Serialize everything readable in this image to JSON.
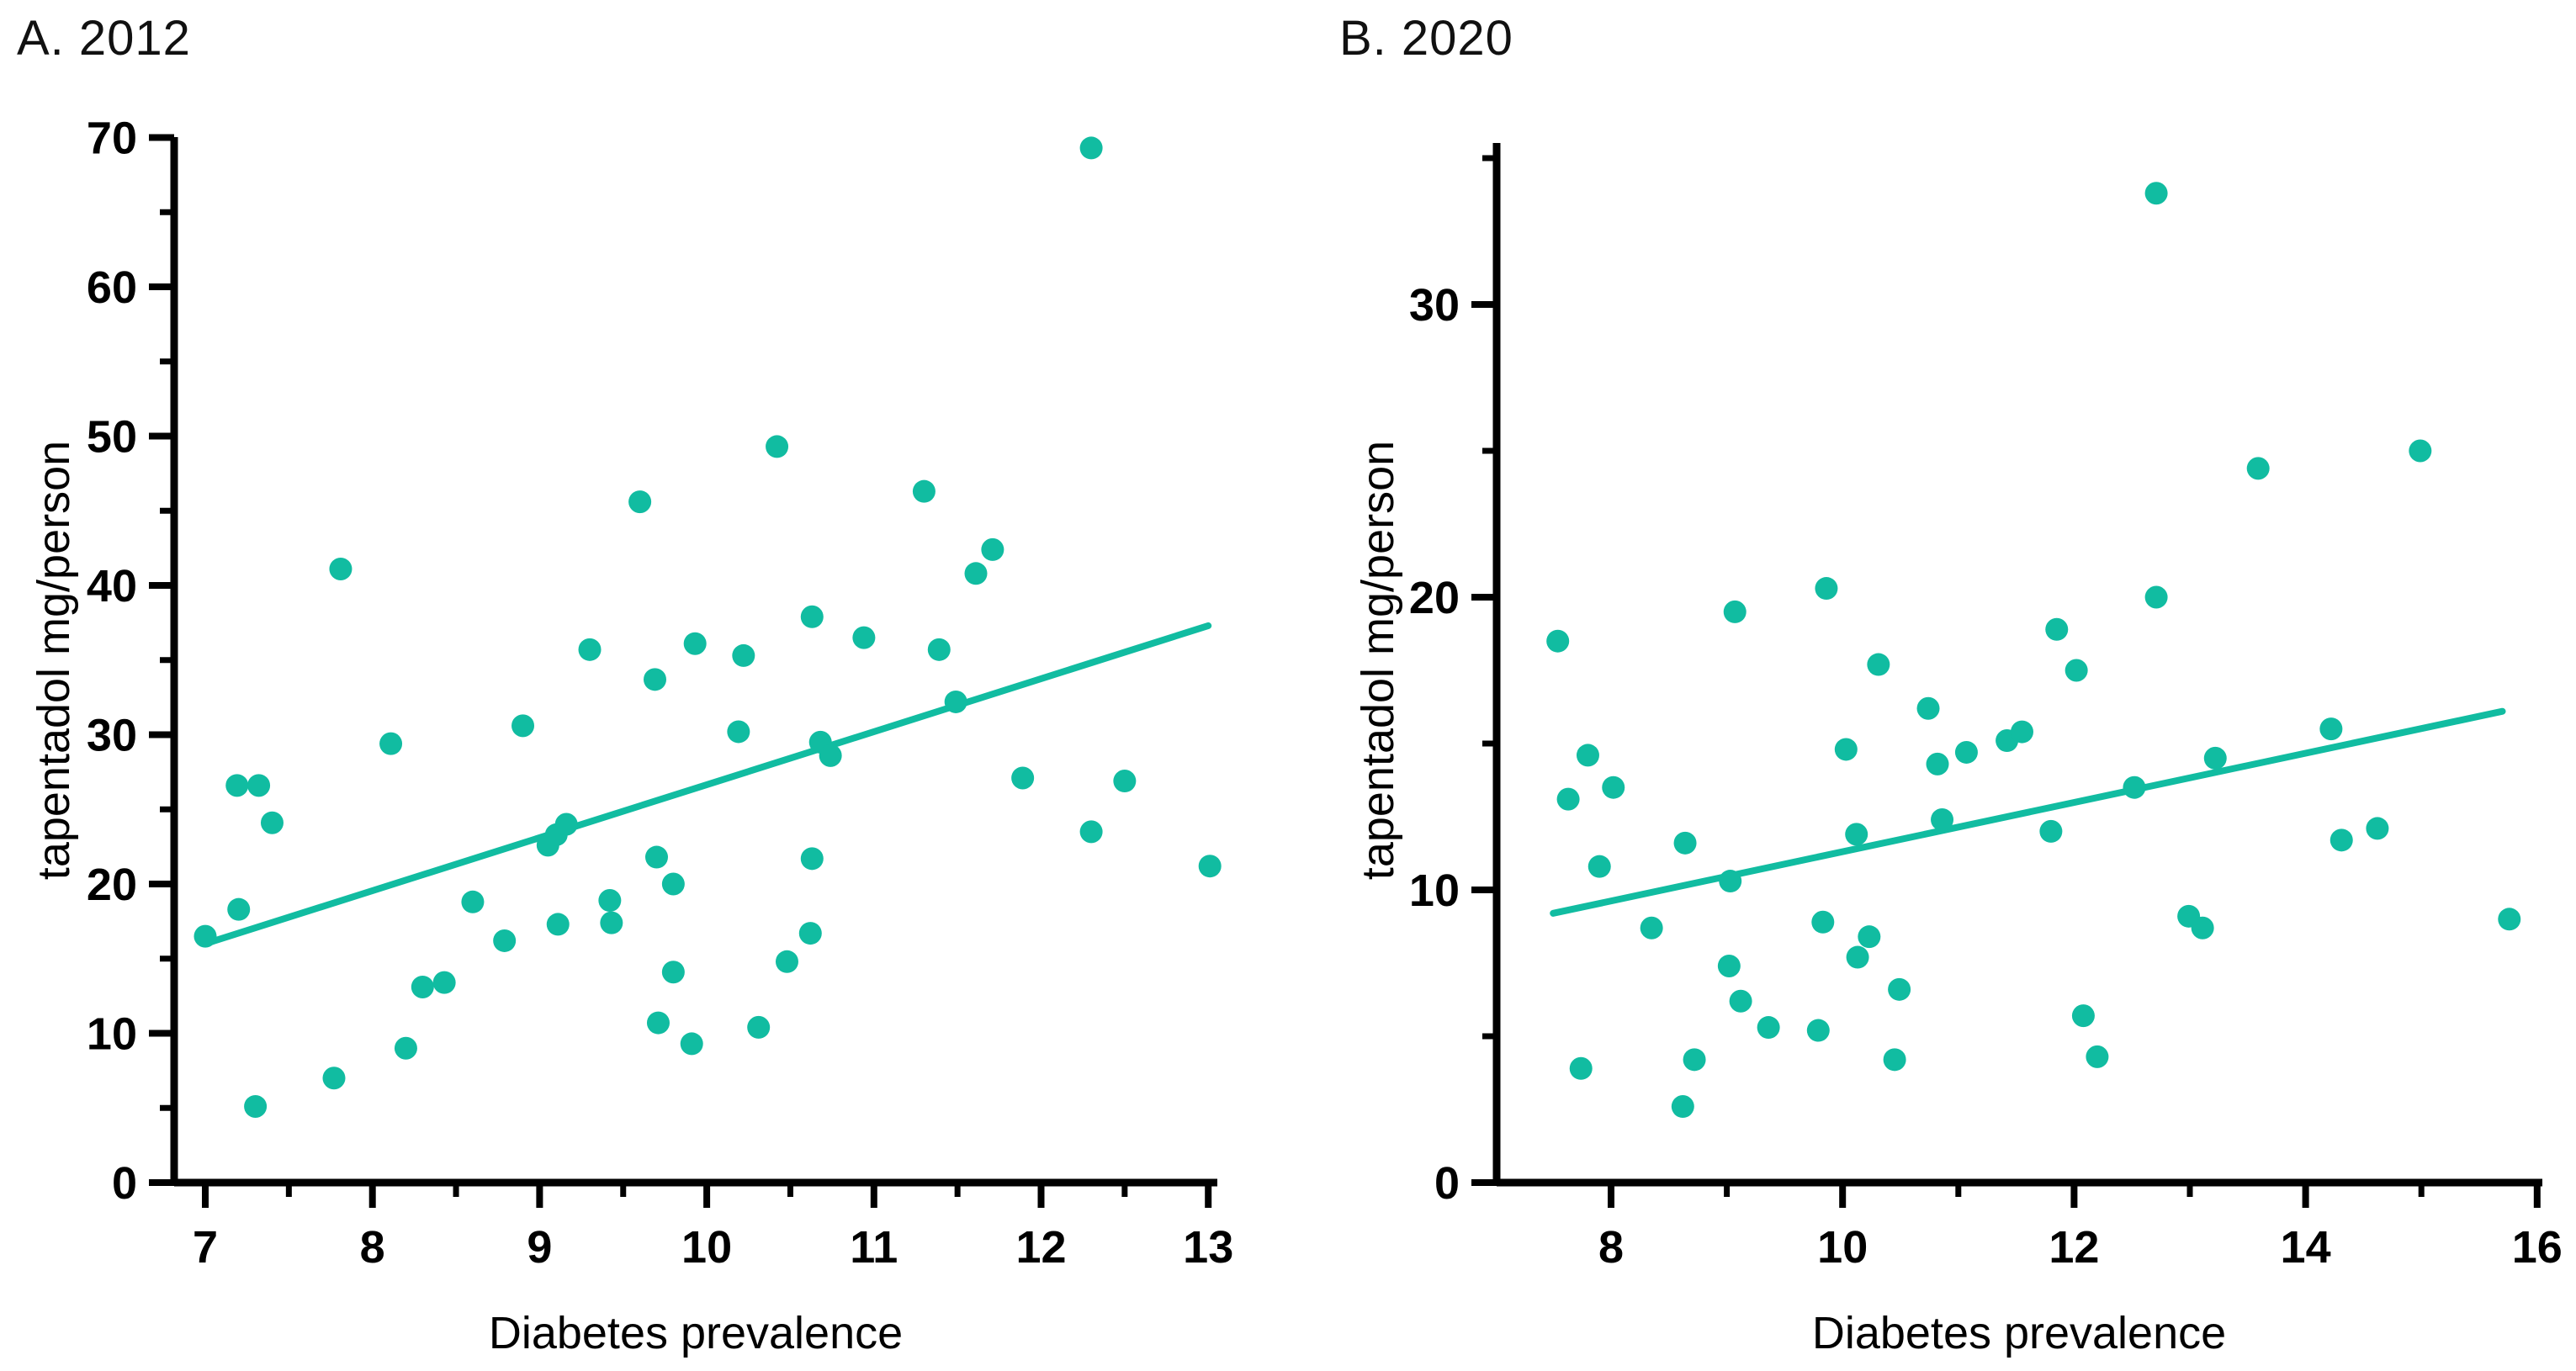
{
  "colors": {
    "accent": "#11BCA1",
    "axis": "#000000",
    "text": "#111111"
  },
  "panel_a": {
    "title": "A. 2012",
    "xlabel": "Diabetes prevalence",
    "ylabel": "tapentadol mg/person"
  },
  "panel_b": {
    "title": "B. 2020",
    "xlabel": "Diabetes prevalence",
    "ylabel": "tapentadol mg/person"
  },
  "chart_data": [
    {
      "type": "scatter",
      "title": "A. 2012",
      "xlabel": "Diabetes prevalence",
      "ylabel": "tapentadol mg/person",
      "xlim": [
        6.81,
        13.05
      ],
      "ylim": [
        0,
        70
      ],
      "xticks": [
        7,
        8,
        9,
        10,
        11,
        12,
        13
      ],
      "xticks_minor": [
        7.5,
        8.5,
        9.5,
        10.5,
        11.5,
        12.5
      ],
      "yticks": [
        0,
        10,
        20,
        30,
        40,
        50,
        60,
        70
      ],
      "yticks_minor": [
        5,
        15,
        25,
        35,
        45,
        55,
        65
      ],
      "grid": false,
      "legend": "none",
      "points": [
        [
          7.0,
          16.5
        ],
        [
          7.19,
          26.6
        ],
        [
          7.2,
          18.3
        ],
        [
          7.3,
          5.1
        ],
        [
          7.32,
          26.6
        ],
        [
          7.4,
          24.1
        ],
        [
          7.77,
          7.0
        ],
        [
          7.81,
          41.1
        ],
        [
          8.11,
          29.4
        ],
        [
          8.2,
          9.0
        ],
        [
          8.3,
          13.1
        ],
        [
          8.43,
          13.4
        ],
        [
          8.6,
          18.8
        ],
        [
          8.79,
          16.2
        ],
        [
          8.9,
          30.6
        ],
        [
          9.05,
          22.6
        ],
        [
          9.1,
          23.3
        ],
        [
          9.16,
          24.0
        ],
        [
          9.11,
          17.3
        ],
        [
          9.3,
          35.7
        ],
        [
          9.42,
          18.9
        ],
        [
          9.43,
          17.4
        ],
        [
          9.6,
          45.6
        ],
        [
          9.69,
          33.7
        ],
        [
          9.7,
          21.8
        ],
        [
          9.71,
          10.7
        ],
        [
          9.8,
          20.0
        ],
        [
          9.8,
          14.1
        ],
        [
          9.91,
          9.3
        ],
        [
          9.93,
          36.1
        ],
        [
          10.19,
          30.2
        ],
        [
          10.22,
          35.3
        ],
        [
          10.31,
          10.4
        ],
        [
          10.42,
          49.3
        ],
        [
          10.48,
          14.8
        ],
        [
          10.62,
          16.7
        ],
        [
          10.63,
          21.7
        ],
        [
          10.63,
          37.9
        ],
        [
          10.68,
          29.5
        ],
        [
          10.74,
          28.6
        ],
        [
          10.94,
          36.5
        ],
        [
          11.3,
          46.3
        ],
        [
          11.39,
          35.7
        ],
        [
          11.49,
          32.2
        ],
        [
          11.61,
          40.8
        ],
        [
          11.71,
          42.4
        ],
        [
          11.89,
          27.1
        ],
        [
          12.3,
          69.3
        ],
        [
          12.3,
          23.5
        ],
        [
          12.5,
          26.9
        ],
        [
          13.01,
          21.2
        ]
      ],
      "trendline": {
        "x1": 7.0,
        "y1": 16.0,
        "x2": 13.0,
        "y2": 37.3
      }
    },
    {
      "type": "scatter",
      "title": "B. 2020",
      "xlabel": "Diabetes prevalence",
      "ylabel": "tapentadol mg/person",
      "xlim": [
        7.01,
        16.04
      ],
      "ylim": [
        0,
        35.5
      ],
      "xticks": [
        8,
        10,
        12,
        14,
        16
      ],
      "xticks_minor": [
        9,
        11,
        13,
        15
      ],
      "yticks": [
        0,
        10,
        20,
        30
      ],
      "yticks_minor": [
        5,
        15,
        25,
        35
      ],
      "grid": false,
      "legend": "none",
      "points": [
        [
          7.54,
          18.5
        ],
        [
          7.63,
          13.1
        ],
        [
          7.74,
          3.9
        ],
        [
          7.8,
          14.6
        ],
        [
          7.9,
          10.8
        ],
        [
          8.02,
          13.5
        ],
        [
          8.35,
          8.7
        ],
        [
          8.62,
          2.6
        ],
        [
          8.64,
          11.6
        ],
        [
          8.72,
          4.2
        ],
        [
          9.02,
          7.4
        ],
        [
          9.03,
          10.3
        ],
        [
          9.07,
          19.5
        ],
        [
          9.12,
          6.2
        ],
        [
          9.36,
          5.3
        ],
        [
          9.79,
          5.2
        ],
        [
          9.83,
          8.9
        ],
        [
          9.86,
          20.3
        ],
        [
          10.03,
          14.8
        ],
        [
          10.12,
          11.9
        ],
        [
          10.13,
          7.7
        ],
        [
          10.23,
          8.4
        ],
        [
          10.31,
          17.7
        ],
        [
          10.45,
          4.2
        ],
        [
          10.49,
          6.6
        ],
        [
          10.74,
          16.2
        ],
        [
          10.82,
          14.3
        ],
        [
          10.86,
          12.4
        ],
        [
          11.07,
          14.7
        ],
        [
          11.42,
          15.1
        ],
        [
          11.55,
          15.4
        ],
        [
          11.8,
          12.0
        ],
        [
          11.85,
          18.9
        ],
        [
          12.02,
          17.5
        ],
        [
          12.08,
          5.7
        ],
        [
          12.2,
          4.3
        ],
        [
          12.52,
          13.5
        ],
        [
          12.71,
          33.8
        ],
        [
          12.71,
          20.0
        ],
        [
          12.99,
          9.1
        ],
        [
          13.11,
          8.7
        ],
        [
          13.22,
          14.5
        ],
        [
          13.59,
          24.4
        ],
        [
          14.22,
          15.5
        ],
        [
          14.31,
          11.7
        ],
        [
          14.62,
          12.1
        ],
        [
          14.99,
          25.0
        ],
        [
          15.76,
          9.0
        ]
      ],
      "trendline": {
        "x1": 7.5,
        "y1": 9.2,
        "x2": 15.7,
        "y2": 16.1
      }
    }
  ]
}
